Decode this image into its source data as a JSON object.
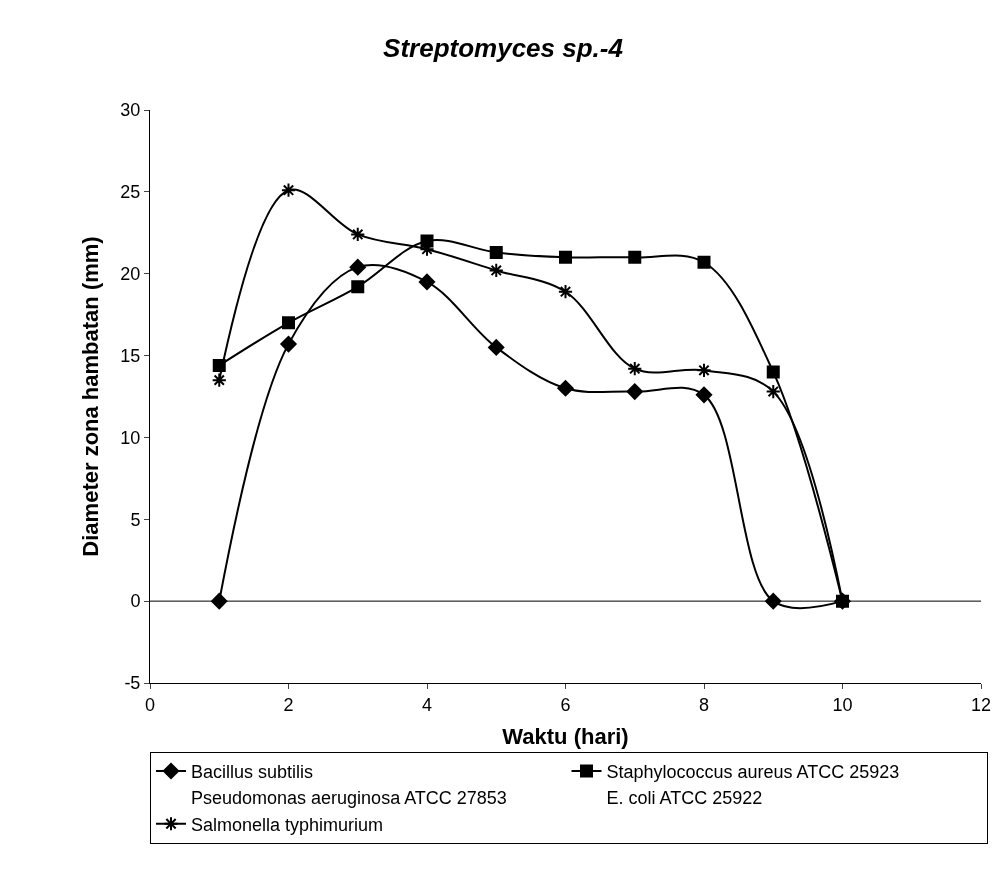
{
  "chart_data": {
    "type": "line",
    "title": "Streptomyces sp.-4",
    "xlabel": "Waktu (hari)",
    "ylabel": "Diameter zona hambatan (mm)",
    "x": [
      1,
      2,
      3,
      4,
      5,
      6,
      7,
      8,
      9,
      10
    ],
    "series": [
      {
        "name": "Bacillus subtilis",
        "color": "#000000",
        "marker": "diamond",
        "values": [
          0,
          15.7,
          20.4,
          19.5,
          15.5,
          13,
          12.8,
          12.6,
          0,
          0
        ]
      },
      {
        "name": "Staphylococcus aureus ATCC 25923",
        "color": "#000000",
        "marker": "square",
        "values": [
          14.4,
          17,
          19.2,
          22,
          21.3,
          21,
          21,
          20.7,
          14,
          0
        ]
      },
      {
        "name": "Pseudomonas aeruginosa ATCC 27853",
        "marker": "none",
        "values": [
          null,
          null,
          null,
          null,
          null,
          null,
          null,
          null,
          null,
          null
        ]
      },
      {
        "name": "E. coli ATCC 25922",
        "marker": "none",
        "values": [
          null,
          null,
          null,
          null,
          null,
          null,
          null,
          null,
          null,
          null
        ]
      },
      {
        "name": "Salmonella typhimurium",
        "color": "#000000",
        "marker": "cross",
        "values": [
          13.5,
          25.1,
          22.4,
          21.5,
          20.2,
          18.9,
          14.2,
          14.1,
          12.8,
          0
        ]
      }
    ],
    "xlim": [
      0,
      12
    ],
    "xticks": [
      0,
      2,
      4,
      6,
      8,
      10,
      12
    ],
    "ylim": [
      -5,
      30
    ],
    "yticks": [
      -5,
      0,
      5,
      10,
      15,
      20,
      25,
      30
    ],
    "ref_lines": [
      {
        "axis": "y",
        "value": 0
      }
    ],
    "grid": false,
    "legend": "bottom"
  }
}
